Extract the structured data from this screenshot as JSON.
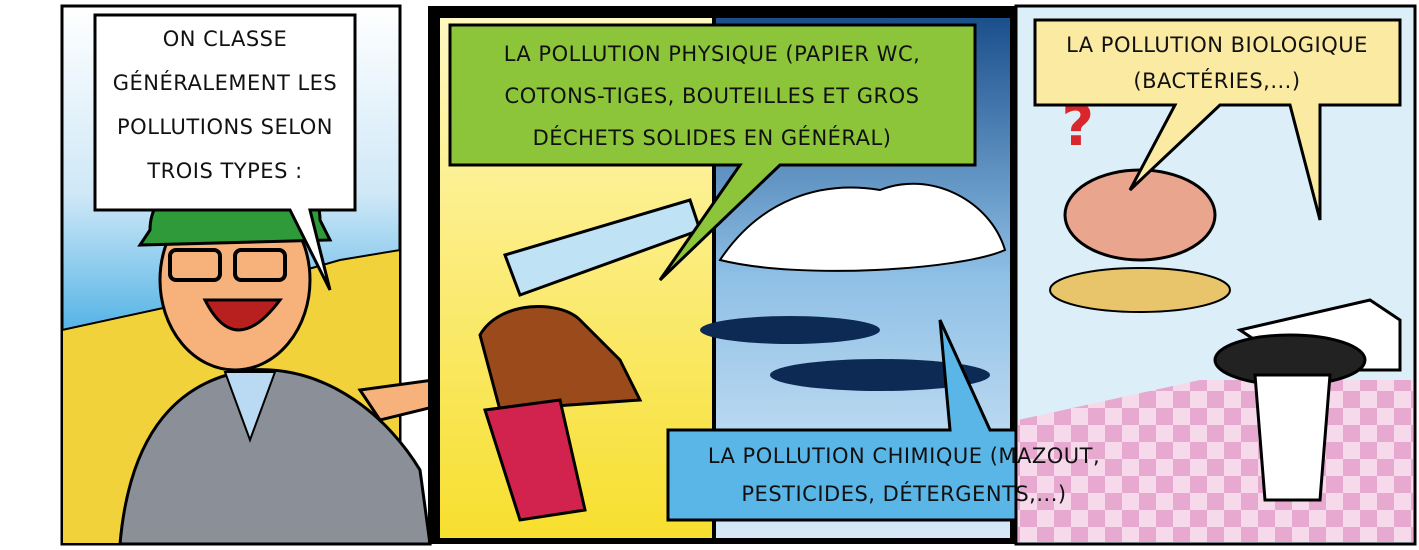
{
  "panels": [
    {
      "bubble": {
        "lines": [
          "ON CLASSE",
          "GÉNÉRALEMENT LES",
          "POLLUTIONS SELON",
          "TROIS TYPES :"
        ]
      }
    },
    {
      "captions": [
        {
          "lines": [
            "LA POLLUTION PHYSIQUE (PAPIER WC,",
            "COTONS-TIGES, BOUTEILLES ET GROS",
            "DÉCHETS SOLIDES EN GÉNÉRAL)"
          ]
        },
        {
          "lines": [
            "LA POLLUTION CHIMIQUE (MAZOUT,",
            "PESTICIDES, DÉTERGENTS,...)"
          ]
        }
      ]
    },
    {
      "captions": [
        {
          "lines": [
            "LA POLLUTION BIOLOGIQUE",
            "(BACTÉRIES,...)"
          ]
        }
      ]
    }
  ]
}
